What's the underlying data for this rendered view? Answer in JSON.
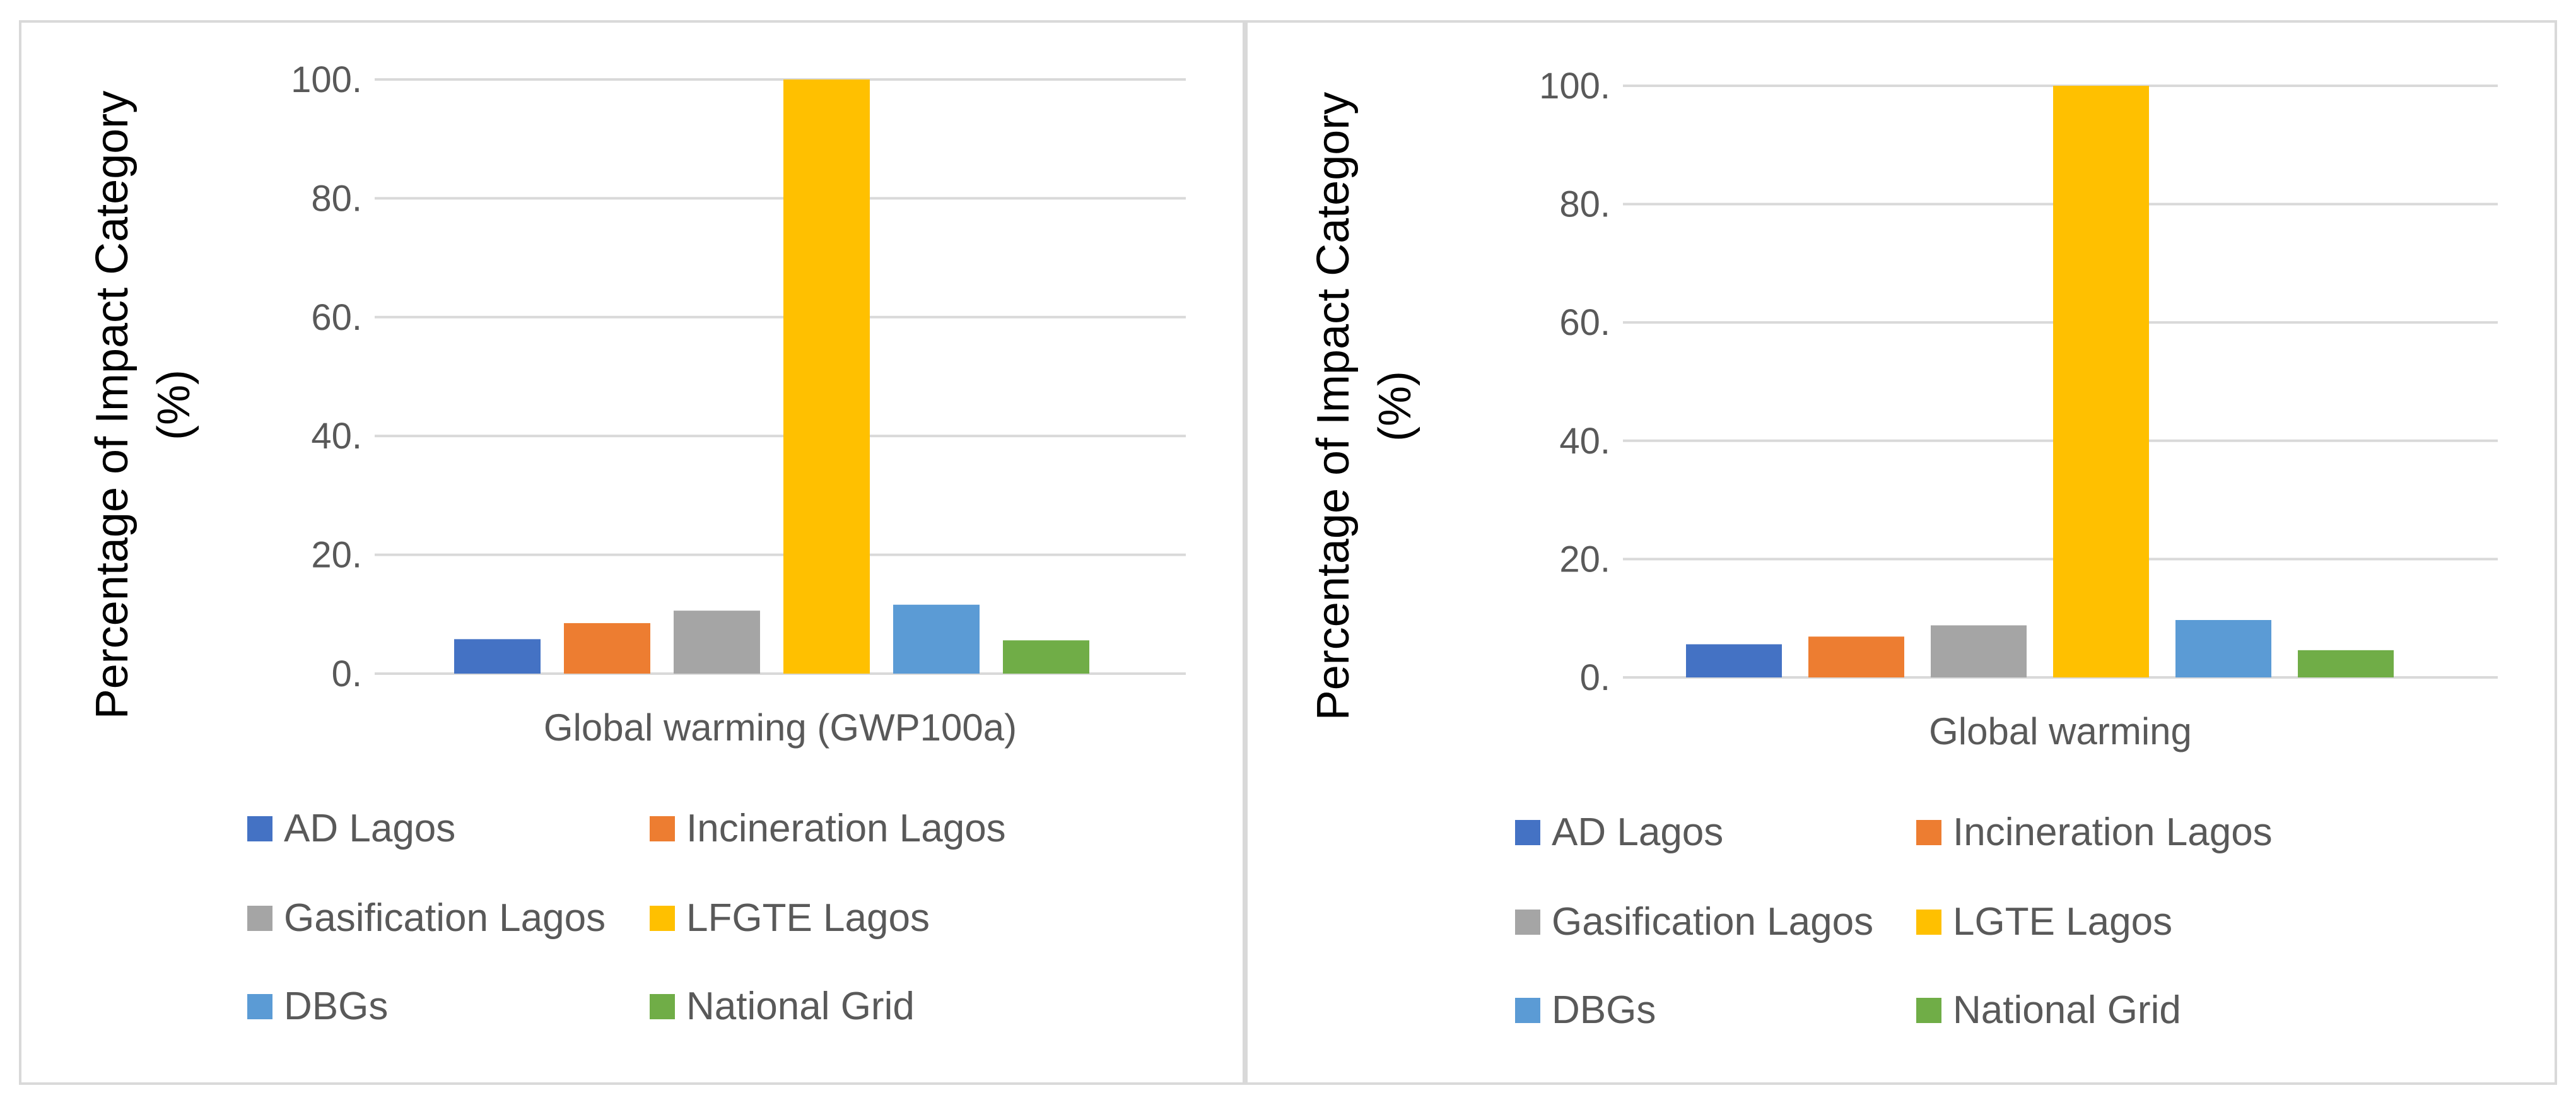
{
  "colors": {
    "ad": "#4472C4",
    "incineration": "#ED7D31",
    "gasification": "#A5A5A5",
    "landfill": "#FFC000",
    "dbgs": "#5B9BD5",
    "grid": "#70AD47",
    "gridline": "#d9d9d9"
  },
  "chart_data": [
    {
      "type": "bar",
      "title": "",
      "xlabel": "",
      "ylabel_lines": [
        "Percentage of Impact Category",
        "(%)"
      ],
      "category": "Global warming (GWP100a)",
      "ylim": [
        0,
        100
      ],
      "yticks": [
        "0.",
        "20.",
        "40.",
        "60.",
        "80.",
        "100."
      ],
      "grid": true,
      "legend_position": "bottom",
      "series": [
        {
          "name": "AD Lagos",
          "value": 5.8,
          "color_key": "ad"
        },
        {
          "name": "Incineration Lagos",
          "value": 8.5,
          "color_key": "incineration"
        },
        {
          "name": "Gasification Lagos",
          "value": 10.6,
          "color_key": "gasification"
        },
        {
          "name": "LFGTE Lagos",
          "value": 100,
          "color_key": "landfill"
        },
        {
          "name": "DBGs",
          "value": 11.6,
          "color_key": "dbgs"
        },
        {
          "name": "National Grid",
          "value": 5.6,
          "color_key": "grid"
        }
      ]
    },
    {
      "type": "bar",
      "title": "",
      "xlabel": "",
      "ylabel_lines": [
        "Percentage of Impact Category",
        "(%)"
      ],
      "category": "Global warming",
      "ylim": [
        0,
        100
      ],
      "yticks": [
        "0.",
        "20.",
        "40.",
        "60.",
        "80.",
        "100."
      ],
      "grid": true,
      "legend_position": "bottom",
      "series": [
        {
          "name": "AD Lagos",
          "value": 5.6,
          "color_key": "ad"
        },
        {
          "name": "Incineration Lagos",
          "value": 6.9,
          "color_key": "incineration"
        },
        {
          "name": "Gasification Lagos",
          "value": 8.8,
          "color_key": "gasification"
        },
        {
          "name": "LGTE Lagos",
          "value": 100,
          "color_key": "landfill"
        },
        {
          "name": "DBGs",
          "value": 9.7,
          "color_key": "dbgs"
        },
        {
          "name": "National Grid",
          "value": 4.6,
          "color_key": "grid"
        }
      ]
    }
  ]
}
